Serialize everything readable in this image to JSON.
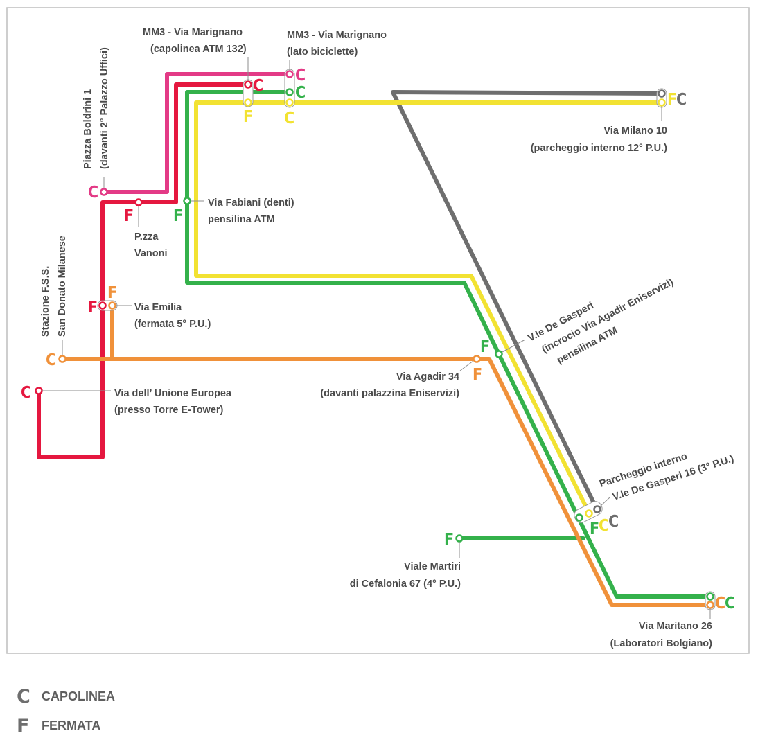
{
  "colors": {
    "magenta": "#e33a86",
    "red": "#e5173f",
    "green": "#34b14b",
    "yellow": "#f2e232",
    "gray": "#6e6e6e",
    "orange": "#f0913a",
    "label": "#4a4a4a"
  },
  "markers": {
    "capolinea": "C",
    "fermata": "F"
  },
  "stops": {
    "mm3_132": {
      "line1": "MM3 - Via Marignano",
      "line2": "(capolinea ATM 132)"
    },
    "mm3_bici": {
      "line1": "MM3 - Via Marignano",
      "line2": "(lato biciclette)"
    },
    "boldrini": {
      "line1": "Piazza Boldrini 1",
      "line2": "(davanti 2° Palazzo Uffici)"
    },
    "vanoni": {
      "line1": "P.zza",
      "line2": "Vanoni"
    },
    "fabiani": {
      "line1": "Via Fabiani (denti)",
      "line2": "pensilina ATM"
    },
    "milano": {
      "line1": "Via Milano 10",
      "line2": "(parcheggio interno 12° P.U.)"
    },
    "fss": {
      "line1": "Stazione F.S.S.",
      "line2": "San Donato Milanese"
    },
    "emilia": {
      "line1": "Via Emilia",
      "line2": "(fermata 5° P.U.)"
    },
    "degasperi": {
      "line1": "V.le De Gasperi",
      "line2": "(incrocio Via Agadir Eniservizi)",
      "line3": "pensilina ATM"
    },
    "agadir": {
      "line1": "Via Agadir 34",
      "line2": "(davanti palazzina Eniservizi)"
    },
    "unione": {
      "line1": "Via dell’ Unione Europea",
      "line2": "(presso Torre E-Tower)"
    },
    "parcheggio": {
      "line1": "Parcheggio interno",
      "line2": "V.le De Gasperi 16 (3° P.U.)"
    },
    "cefalonia": {
      "line1": "Viale Martiri",
      "line2": "di Cefalonia 67 (4° P.U.)"
    },
    "maritano": {
      "line1": "Via Maritano 26",
      "line2": "(Laboratori Bolgiano)"
    }
  },
  "legend": [
    {
      "symbol": "C",
      "label": "CAPOLINEA"
    },
    {
      "symbol": "F",
      "label": "FERMATA"
    }
  ]
}
